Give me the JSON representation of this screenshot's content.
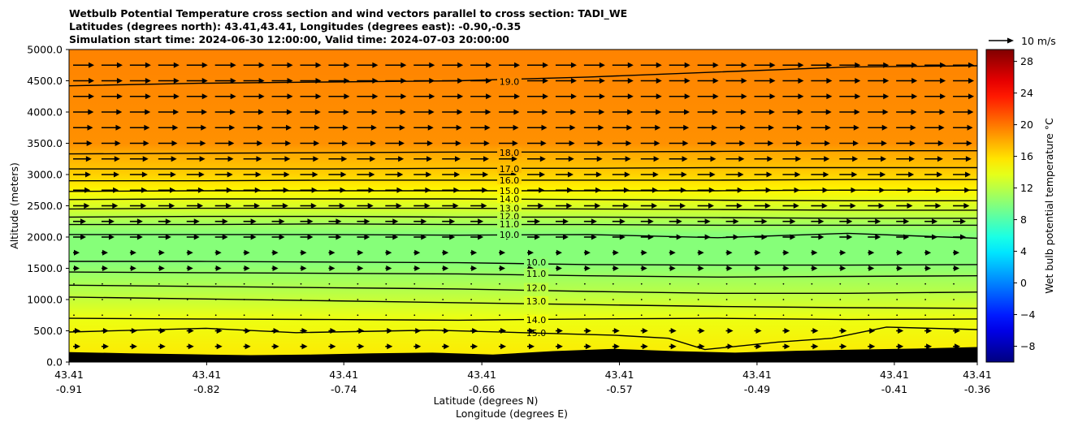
{
  "chart_data": {
    "type": "heatmap",
    "title_lines": [
      "Wetbulb Potential Temperature cross section and wind vectors parallel to cross section: TADI_WE",
      "Latitudes (degrees north): 43.41,43.41, Longitudes (degrees east): -0.90,-0.35",
      "Simulation start time: 2024-06-30 12:00:00, Valid time: 2024-07-03 20:00:00"
    ],
    "ylabel": "Altitude (meters)",
    "xlabel_lat": "Latitude (degrees N)",
    "xlabel_lon": "Longitude (degrees E)",
    "ylim": [
      0,
      5000
    ],
    "yticks": [
      "0.0",
      "500.0",
      "1000.0",
      "1500.0",
      "2000.0",
      "2500.0",
      "3000.0",
      "3500.0",
      "4000.0",
      "4500.0",
      "5000.0"
    ],
    "xticks_lat": [
      "43.41",
      "43.41",
      "43.41",
      "43.41",
      "43.41",
      "43.41",
      "43.41",
      "43.41"
    ],
    "xticks_lon": [
      "-0.91",
      "-0.82",
      "-0.74",
      "-0.66",
      "-0.57",
      "-0.49",
      "-0.41",
      "-0.36"
    ],
    "xtick_fractions": [
      0,
      0.1515,
      0.3025,
      0.4545,
      0.606,
      0.7575,
      0.9087,
      1.0
    ],
    "colorbar": {
      "label": "Wet bulb potential temperature $^\\circ$C",
      "ticks": [
        "28",
        "24",
        "20",
        "16",
        "12",
        "8",
        "4",
        "0",
        "−4",
        "−8"
      ],
      "tick_values": [
        28,
        24,
        20,
        16,
        12,
        8,
        4,
        0,
        -4,
        -8
      ],
      "range": [
        -10,
        29.5
      ]
    },
    "quiver_key": "10 m/s",
    "contours": [
      {
        "label": "19.0",
        "alt": [
          4420,
          4460,
          4480,
          4500,
          4560,
          4640,
          4720,
          4740
        ]
      },
      {
        "label": "18.0",
        "alt": [
          3330,
          3340,
          3350,
          3360,
          3360,
          3370,
          3380,
          3380
        ]
      },
      {
        "label": "17.0",
        "alt": [
          3090,
          3090,
          3090,
          3100,
          3100,
          3110,
          3110,
          3110
        ]
      },
      {
        "label": "16.0",
        "alt": [
          2900,
          2900,
          2910,
          2910,
          2910,
          2910,
          2920,
          2920
        ]
      },
      {
        "label": "15.0",
        "alt": [
          2730,
          2740,
          2740,
          2740,
          2740,
          2740,
          2750,
          2750
        ]
      },
      {
        "label": "14.0",
        "alt": [
          2600,
          2610,
          2610,
          2610,
          2600,
          2590,
          2580,
          2580
        ]
      },
      {
        "label": "13.0",
        "alt": [
          2450,
          2460,
          2460,
          2460,
          2450,
          2440,
          2430,
          2430
        ]
      },
      {
        "label": "12.0",
        "alt": [
          2320,
          2330,
          2330,
          2320,
          2320,
          2310,
          2300,
          2300
        ]
      },
      {
        "label": "11.0",
        "alt": [
          2200,
          2200,
          2210,
          2200,
          2200,
          2190,
          2190,
          2190
        ]
      },
      {
        "label": "10.0",
        "alt": [
          2040,
          2040,
          2040,
          2030,
          2040,
          1990,
          2060,
          1980
        ]
      },
      {
        "label": "10.0",
        "alt": [
          1610,
          1610,
          1600,
          1590,
          1560,
          1550,
          1550,
          1560
        ]
      },
      {
        "label": "11.0",
        "alt": [
          1440,
          1430,
          1420,
          1410,
          1380,
          1360,
          1370,
          1380
        ]
      },
      {
        "label": "12.0",
        "alt": [
          1230,
          1210,
          1190,
          1170,
          1130,
          1100,
          1100,
          1120
        ]
      },
      {
        "label": "13.0",
        "alt": [
          1040,
          1010,
          980,
          950,
          920,
          890,
          870,
          860
        ]
      },
      {
        "label": "14.0",
        "alt": [
          700,
          690,
          680,
          670,
          690,
          700,
          680,
          690
        ]
      }
    ],
    "terrain_alt": [
      160,
      140,
      125,
      110,
      120,
      140,
      150,
      120,
      175,
      210,
      175,
      150,
      180,
      200,
      215,
      240
    ],
    "background_bands": [
      {
        "alt": 0,
        "value": 15.6
      },
      {
        "alt": 700,
        "value": 14
      },
      {
        "alt": 1100,
        "value": 12
      },
      {
        "alt": 1600,
        "value": 10
      },
      {
        "alt": 2050,
        "value": 10
      },
      {
        "alt": 2200,
        "value": 11
      },
      {
        "alt": 2450,
        "value": 13
      },
      {
        "alt": 2750,
        "value": 15
      },
      {
        "alt": 3100,
        "value": 17
      },
      {
        "alt": 3350,
        "value": 18
      },
      {
        "alt": 3500,
        "value": 19
      },
      {
        "alt": 5000,
        "value": 19.5
      }
    ]
  }
}
